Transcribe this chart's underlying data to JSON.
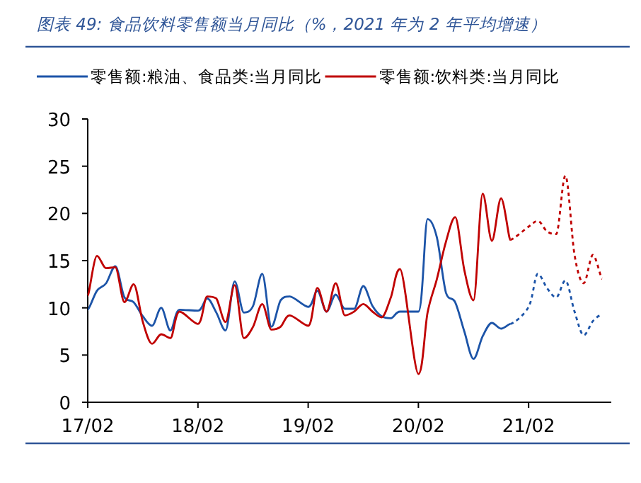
{
  "chart_data": {
    "type": "line",
    "title": "图表 49: 食品饮料零售额当月同比（%，2021 年为 2 年平均增速）",
    "xlim": [
      "2017-02",
      "2021-11"
    ],
    "xticks": [
      {
        "value": "2017-02",
        "label": "17/02"
      },
      {
        "value": "2018-02",
        "label": "18/02"
      },
      {
        "value": "2019-02",
        "label": "19/02"
      },
      {
        "value": "2020-02",
        "label": "20/02"
      },
      {
        "value": "2021-02",
        "label": "21/02"
      }
    ],
    "ylim": [
      0,
      30
    ],
    "yticks": [
      0,
      5,
      10,
      15,
      20,
      25,
      30
    ],
    "grid": false,
    "legend": "top",
    "marker": "none",
    "series": [
      {
        "name": "零售额:粮油、食品类:当月同比",
        "color": "#1c54a8",
        "line_style": "solid",
        "x": [
          "2017-02",
          "2017-03",
          "2017-04",
          "2017-05",
          "2017-06",
          "2017-07",
          "2017-08",
          "2017-09",
          "2017-10",
          "2017-11",
          "2017-12",
          "2018-02",
          "2018-03",
          "2018-04",
          "2018-05",
          "2018-06",
          "2018-07",
          "2018-08",
          "2018-09",
          "2018-10",
          "2018-11",
          "2018-12",
          "2019-02",
          "2019-03",
          "2019-04",
          "2019-05",
          "2019-06",
          "2019-07",
          "2019-08",
          "2019-09",
          "2019-10",
          "2019-11",
          "2019-12",
          "2020-02",
          "2020-03",
          "2020-04",
          "2020-05",
          "2020-06",
          "2020-07",
          "2020-08",
          "2020-09",
          "2020-10",
          "2020-11",
          "2020-12"
        ],
        "values": [
          9.8,
          11.8,
          12.6,
          14.4,
          11.1,
          10.6,
          9.1,
          8.1,
          10.0,
          7.6,
          9.8,
          9.7,
          11.0,
          9.5,
          7.6,
          12.8,
          9.5,
          10.2,
          13.6,
          8.0,
          10.8,
          11.2,
          10.1,
          11.8,
          9.6,
          11.4,
          9.9,
          9.9,
          12.3,
          10.2,
          9.1,
          8.9,
          9.6,
          9.6,
          19.4,
          17.5,
          11.6,
          10.6,
          7.5,
          4.6,
          7.0,
          8.4,
          7.8,
          8.3
        ]
      },
      {
        "name": "零售额:饮料类:当月同比",
        "color": "#c00000",
        "line_style": "solid",
        "x": [
          "2017-02",
          "2017-03",
          "2017-04",
          "2017-05",
          "2017-06",
          "2017-07",
          "2017-08",
          "2017-09",
          "2017-10",
          "2017-11",
          "2017-12",
          "2018-02",
          "2018-03",
          "2018-04",
          "2018-05",
          "2018-06",
          "2018-07",
          "2018-08",
          "2018-09",
          "2018-10",
          "2018-11",
          "2018-12",
          "2019-02",
          "2019-03",
          "2019-04",
          "2019-05",
          "2019-06",
          "2019-07",
          "2019-08",
          "2019-09",
          "2019-10",
          "2019-11",
          "2019-12",
          "2020-02",
          "2020-03",
          "2020-04",
          "2020-05",
          "2020-06",
          "2020-07",
          "2020-08",
          "2020-09",
          "2020-10",
          "2020-11",
          "2020-12"
        ],
        "values": [
          11.3,
          15.5,
          14.2,
          14.3,
          10.6,
          12.5,
          8.5,
          6.2,
          7.2,
          6.8,
          9.6,
          8.3,
          11.2,
          11.0,
          8.5,
          12.4,
          6.8,
          8.0,
          10.4,
          7.7,
          8.0,
          9.2,
          8.1,
          12.1,
          9.6,
          12.6,
          9.2,
          9.6,
          10.4,
          9.6,
          9.0,
          11.1,
          14.1,
          3.0,
          9.5,
          13.0,
          17.0,
          19.6,
          14.0,
          10.8,
          22.1,
          17.1,
          21.6,
          17.2
        ]
      },
      {
        "color": "#1c54a8",
        "line_style": "dotted",
        "x": [
          "2020-12",
          "2021-02",
          "2021-03",
          "2021-04",
          "2021-05",
          "2021-06",
          "2021-07",
          "2021-08",
          "2021-09",
          "2021-10"
        ],
        "values": [
          8.3,
          10.1,
          13.6,
          12.1,
          11.1,
          12.9,
          9.6,
          7.1,
          8.6,
          9.3
        ]
      },
      {
        "color": "#c00000",
        "line_style": "dotted",
        "x": [
          "2020-12",
          "2021-02",
          "2021-03",
          "2021-04",
          "2021-05",
          "2021-06",
          "2021-07",
          "2021-08",
          "2021-09",
          "2021-10"
        ],
        "values": [
          17.2,
          18.6,
          19.2,
          18.1,
          17.8,
          24.0,
          15.6,
          12.6,
          15.6,
          13.1
        ]
      }
    ]
  }
}
